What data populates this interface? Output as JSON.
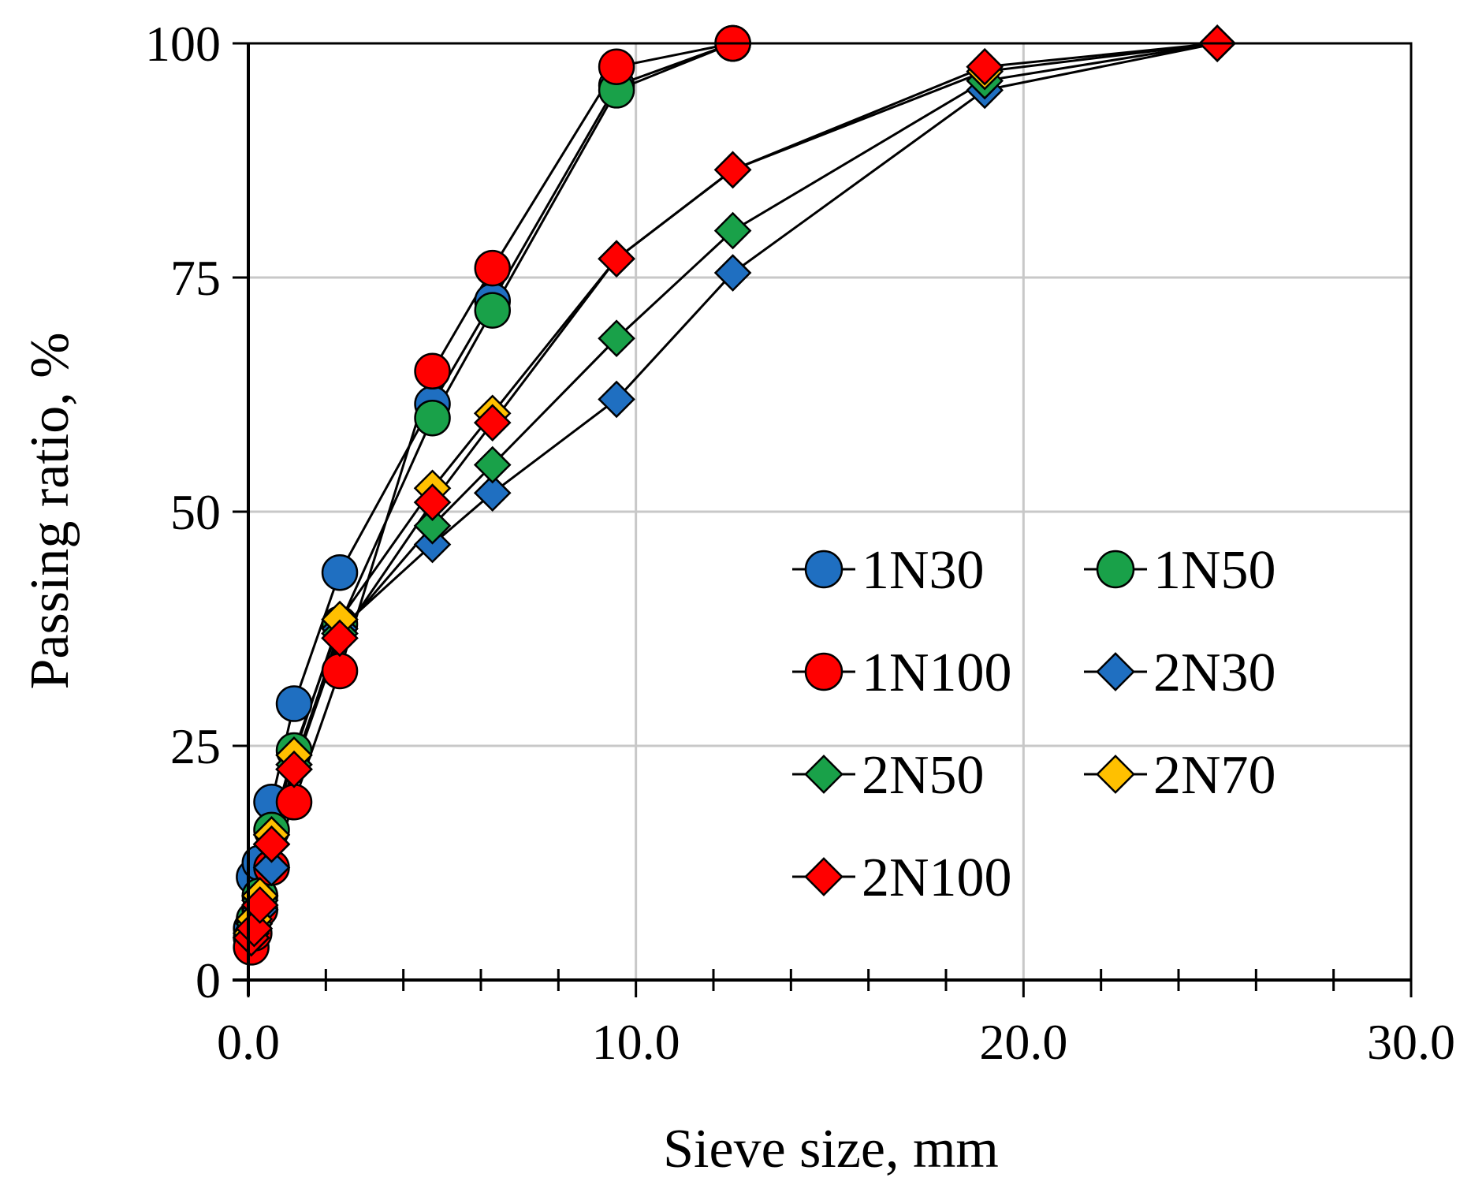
{
  "chart_data": {
    "type": "line",
    "title": "",
    "xlabel": "Sieve size, mm",
    "ylabel": "Passing ratio, %",
    "xlim": [
      0,
      30
    ],
    "ylim": [
      0,
      100
    ],
    "x_ticks": [
      "0.0",
      "10.0",
      "20.0",
      "30.0"
    ],
    "y_ticks": [
      "0",
      "25",
      "50",
      "75",
      "100"
    ],
    "x_minor_step": 2,
    "grid": true,
    "legend_position": "center-right",
    "colors": {
      "blue": "#1f6fc1",
      "green": "#19a149",
      "red": "#ff0000",
      "yellow": "#ffc000"
    },
    "series": [
      {
        "name": "1N30",
        "marker": "circle",
        "color": "#1f6fc1",
        "x": [
          0.075,
          0.15,
          0.3,
          0.6,
          1.18,
          2.36,
          4.75,
          6.3,
          9.5,
          12.5
        ],
        "y": [
          5.5,
          11,
          12.5,
          19,
          29.5,
          43.5,
          61.5,
          72.5,
          95.5,
          100
        ]
      },
      {
        "name": "1N50",
        "marker": "circle",
        "color": "#19a149",
        "x": [
          0.075,
          0.15,
          0.3,
          0.6,
          1.18,
          2.36,
          4.75,
          6.3,
          9.5,
          12.5
        ],
        "y": [
          4.5,
          6.5,
          9,
          16,
          24.5,
          38,
          60,
          71.5,
          95,
          100
        ]
      },
      {
        "name": "1N100",
        "marker": "circle",
        "color": "#ff0000",
        "x": [
          0.075,
          0.15,
          0.3,
          0.6,
          1.18,
          2.36,
          4.75,
          6.3,
          9.5,
          12.5
        ],
        "y": [
          3.5,
          5,
          7.5,
          12,
          19,
          33,
          65,
          76,
          97.5,
          100
        ]
      },
      {
        "name": "2N30",
        "marker": "diamond",
        "color": "#1f6fc1",
        "x": [
          0.075,
          0.15,
          0.3,
          0.6,
          1.18,
          2.36,
          4.75,
          6.3,
          9.5,
          12.5,
          19,
          25
        ],
        "y": [
          4.5,
          6,
          7.5,
          12,
          22.5,
          37.5,
          46.5,
          52,
          62,
          75.5,
          95,
          100
        ]
      },
      {
        "name": "2N50",
        "marker": "diamond",
        "color": "#19a149",
        "x": [
          0.075,
          0.15,
          0.3,
          0.6,
          1.18,
          2.36,
          4.75,
          6.3,
          9.5,
          12.5,
          19,
          25
        ],
        "y": [
          4.5,
          6,
          8.5,
          14.5,
          23,
          37,
          48.5,
          55,
          68.5,
          80,
          96,
          100
        ]
      },
      {
        "name": "2N70",
        "marker": "diamond",
        "color": "#ffc000",
        "x": [
          0.075,
          0.15,
          0.3,
          0.6,
          1.18,
          2.36,
          4.75,
          6.3,
          9.5,
          12.5,
          19,
          25
        ],
        "y": [
          5,
          6.5,
          9,
          15.5,
          24,
          38.5,
          52.5,
          60.5,
          77,
          86.5,
          97,
          100
        ]
      },
      {
        "name": "2N100",
        "marker": "diamond",
        "color": "#ff0000",
        "x": [
          0.075,
          0.15,
          0.3,
          0.6,
          1.18,
          2.36,
          4.75,
          6.3,
          9.5,
          12.5,
          19,
          25
        ],
        "y": [
          4.5,
          5.5,
          8,
          14.5,
          22.5,
          36.5,
          51,
          59.5,
          77,
          86.5,
          97.5,
          100
        ]
      }
    ]
  }
}
